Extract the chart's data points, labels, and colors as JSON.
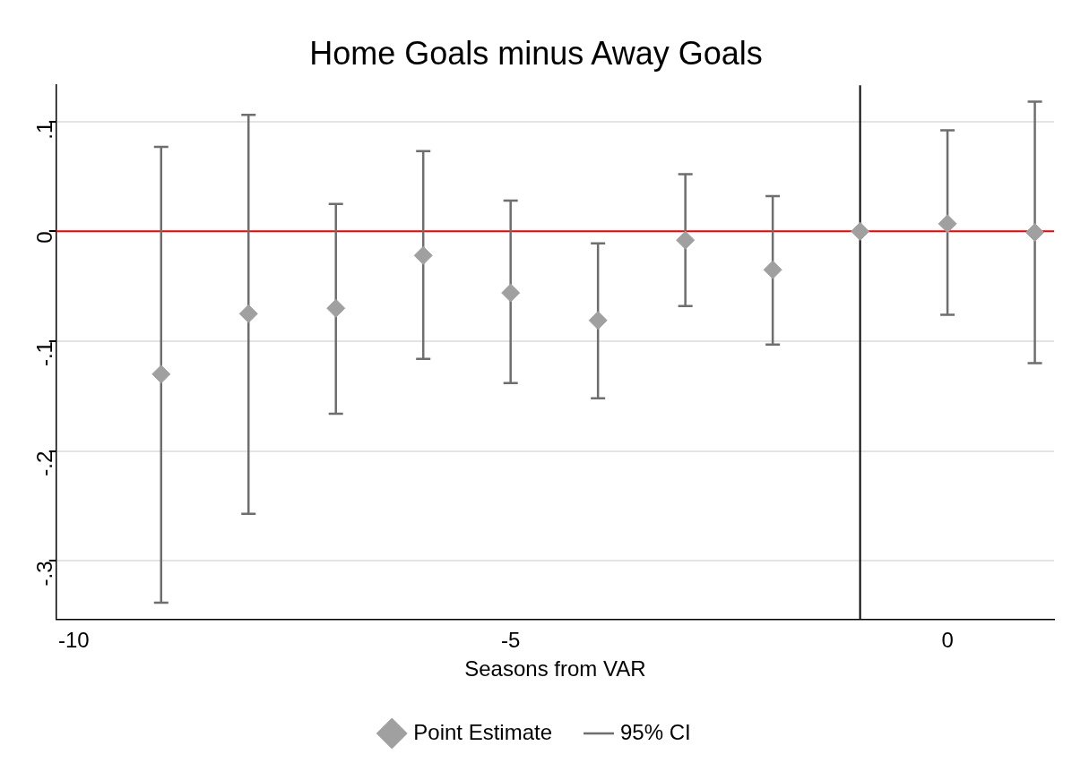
{
  "chart_data": {
    "type": "scatter",
    "title": "Home Goals minus Away Goals",
    "xlabel": "Seasons from VAR",
    "x": [
      -9,
      -8,
      -7,
      -6,
      -5,
      -4,
      -3,
      -2,
      -1,
      0,
      1
    ],
    "series": [
      {
        "name": "Point Estimate",
        "color": "#a0a0a0",
        "values": [
          -0.13,
          -0.075,
          -0.07,
          -0.022,
          -0.056,
          -0.081,
          -0.008,
          -0.035,
          0,
          0.007,
          -0.001
        ],
        "errors": [
          [
            -0.338,
            0.077
          ],
          [
            -0.257,
            0.106
          ],
          [
            -0.166,
            0.025
          ],
          [
            -0.116,
            0.073
          ],
          [
            -0.138,
            0.028
          ],
          [
            -0.152,
            -0.011
          ],
          [
            -0.068,
            0.052
          ],
          [
            -0.103,
            0.032
          ],
          null,
          [
            -0.076,
            0.092
          ],
          [
            -0.12,
            0.118
          ]
        ]
      }
    ],
    "xlim": [
      -10.2,
      1.22
    ],
    "xticks": [
      -10,
      -5,
      0
    ],
    "ylim": [
      -0.353,
      0.133
    ],
    "yticks": [
      {
        "value": -0.3,
        "label": "-.3"
      },
      {
        "value": -0.2,
        "label": "-.2"
      },
      {
        "value": -0.1,
        "label": "-.1"
      },
      0,
      {
        "value": 0.1,
        "label": ".1"
      }
    ],
    "ref_lines": [
      {
        "axis": "y",
        "value": 0,
        "color": "#ff0000"
      },
      {
        "axis": "x",
        "value": -1,
        "color": "#000000"
      }
    ],
    "annotations": [
      "95% CI"
    ],
    "grid": "y",
    "legend": "bottom",
    "marker": "diamond"
  }
}
